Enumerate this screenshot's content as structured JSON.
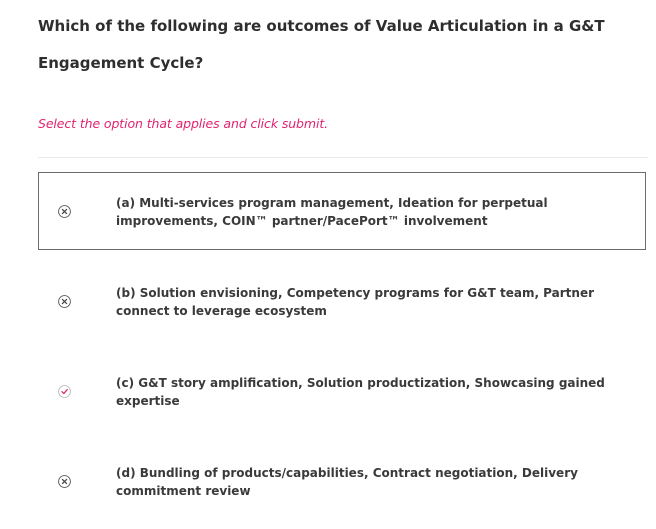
{
  "question": {
    "text": "Which of the following are outcomes of Value Articulation in a G&T Engagement Cycle?"
  },
  "instruction": "Select the option that applies and click submit.",
  "colors": {
    "instruction": "#e0246f",
    "correct_icon": "#e0246f",
    "incorrect_icon": "#555555",
    "selected_border": "#6b6b6b"
  },
  "options": [
    {
      "label": "(a) Multi-services program management, Ideation for perpetual improvements, COIN™ partner/PacePort™ involvement",
      "icon": "close-circle-icon",
      "selected": true
    },
    {
      "label": "(b) Solution envisioning, Competency programs for G&T team, Partner connect to leverage ecosystem",
      "icon": "close-circle-icon",
      "selected": false
    },
    {
      "label": "(c) G&T story amplification, Solution productization, Showcasing gained expertise",
      "icon": "check-circle-icon",
      "selected": false
    },
    {
      "label": "(d) Bundling of products/capabilities, Contract negotiation, Delivery commitment review",
      "icon": "close-circle-icon",
      "selected": false
    }
  ]
}
